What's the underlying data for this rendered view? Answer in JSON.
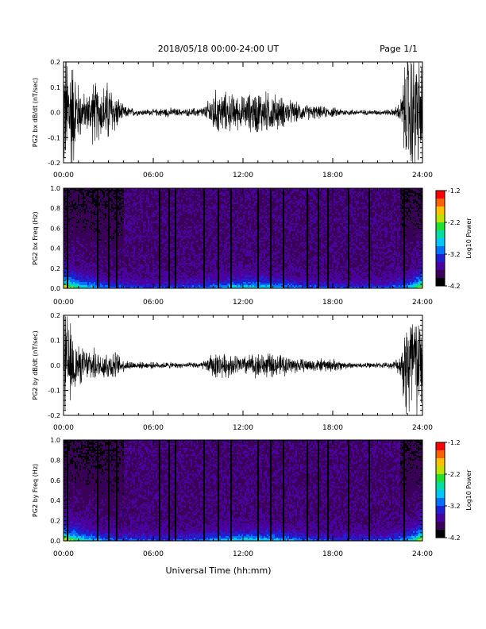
{
  "header": {
    "title": "2018/05/18  00:00-24:00 UT",
    "page": "Page 1/1"
  },
  "chart_data": [
    {
      "type": "line",
      "title": "",
      "ylabel": "PG2 bx dB/dt (nT/sec)",
      "xlabel": "",
      "x_ticks": [
        "00:00",
        "06:00",
        "12:00",
        "18:00",
        "24:00"
      ],
      "xlim": [
        0,
        24
      ],
      "y_ticks": [
        "0.2",
        "0.1",
        "0.0",
        "-0.1",
        "-0.2"
      ],
      "ylim": [
        -0.2,
        0.2
      ],
      "activity_profile": {
        "hours": [
          0,
          0.5,
          1,
          1.5,
          2,
          2.5,
          3,
          3.5,
          4,
          5,
          6,
          7,
          8,
          9,
          9.5,
          10,
          11,
          12,
          13,
          14,
          15,
          16,
          17,
          18,
          19,
          20,
          21,
          22,
          22.5,
          23,
          23.5,
          24
        ],
        "amplitude": [
          0.2,
          0.2,
          0.09,
          0.05,
          0.1,
          0.08,
          0.1,
          0.06,
          0.02,
          0.01,
          0.01,
          0.015,
          0.01,
          0.015,
          0.02,
          0.07,
          0.06,
          0.05,
          0.07,
          0.06,
          0.04,
          0.025,
          0.02,
          0.015,
          0.01,
          0.008,
          0.008,
          0.01,
          0.03,
          0.2,
          0.2,
          0.15
        ]
      }
    },
    {
      "type": "heatmap",
      "title": "",
      "ylabel": "PG2 bx Freq (Hz)",
      "xlabel": "",
      "x_ticks": [
        "00:00",
        "06:00",
        "12:00",
        "18:00",
        "24:00"
      ],
      "xlim": [
        0,
        24
      ],
      "y_ticks": [
        "1.0",
        "0.8",
        "0.6",
        "0.4",
        "0.2",
        "0.0"
      ],
      "ylim": [
        0,
        1.0
      ],
      "colorbar": {
        "label": "Log10 Power",
        "ticks": [
          "-1.2",
          "-2.2",
          "-3.2",
          "-4.2"
        ],
        "range": [
          -4.2,
          -1.2
        ]
      },
      "gap_hours": [
        0.3,
        2.3,
        3.0,
        3.6,
        6.4,
        7.1,
        7.5,
        9.4,
        10.4,
        11.2,
        13.0,
        13.9,
        14.7,
        16.3,
        17.0,
        17.7,
        19.1,
        20.4,
        22.8
      ]
    },
    {
      "type": "line",
      "title": "",
      "ylabel": "PG2 by dB/dt (nT/sec)",
      "xlabel": "",
      "x_ticks": [
        "00:00",
        "06:00",
        "12:00",
        "18:00",
        "24:00"
      ],
      "xlim": [
        0,
        24
      ],
      "y_ticks": [
        "0.2",
        "0.1",
        "0.0",
        "-0.1",
        "-0.2"
      ],
      "ylim": [
        -0.2,
        0.2
      ],
      "activity_profile": {
        "hours": [
          0,
          0.5,
          1,
          1.5,
          2,
          2.5,
          3,
          3.5,
          4,
          5,
          6,
          7,
          8,
          9,
          9.5,
          10,
          11,
          12,
          13,
          14,
          15,
          16,
          17,
          18,
          19,
          20,
          21,
          22,
          22.5,
          23,
          23.5,
          24
        ],
        "amplitude": [
          0.2,
          0.12,
          0.06,
          0.05,
          0.05,
          0.04,
          0.05,
          0.04,
          0.02,
          0.01,
          0.01,
          0.01,
          0.008,
          0.01,
          0.015,
          0.04,
          0.035,
          0.03,
          0.04,
          0.035,
          0.03,
          0.02,
          0.02,
          0.02,
          0.01,
          0.008,
          0.008,
          0.01,
          0.03,
          0.2,
          0.2,
          0.12
        ]
      }
    },
    {
      "type": "heatmap",
      "title": "",
      "ylabel": "PG2 by Freq (Hz)",
      "xlabel": "Universal Time (hh:mm)",
      "x_ticks": [
        "00:00",
        "06:00",
        "12:00",
        "18:00",
        "24:00"
      ],
      "xlim": [
        0,
        24
      ],
      "y_ticks": [
        "1.0",
        "0.8",
        "0.6",
        "0.4",
        "0.2",
        "0.0"
      ],
      "ylim": [
        0,
        1.0
      ],
      "colorbar": {
        "label": "Log10 Power",
        "ticks": [
          "-1.2",
          "-2.2",
          "-3.2",
          "-4.2"
        ],
        "range": [
          -4.2,
          -1.2
        ]
      },
      "gap_hours": [
        0.3,
        2.3,
        3.0,
        3.6,
        6.4,
        7.1,
        7.5,
        9.4,
        10.4,
        11.2,
        13.0,
        13.9,
        14.7,
        16.3,
        17.0,
        17.7,
        19.1,
        20.4,
        22.8
      ]
    }
  ],
  "colors": {
    "trace": "#000000",
    "palette": [
      "#000000",
      "#3a0058",
      "#4b00a0",
      "#2020d0",
      "#0070ff",
      "#00c8ff",
      "#00e0a0",
      "#20e030",
      "#c0e000",
      "#ffc000",
      "#ff6000",
      "#ff0000"
    ]
  }
}
